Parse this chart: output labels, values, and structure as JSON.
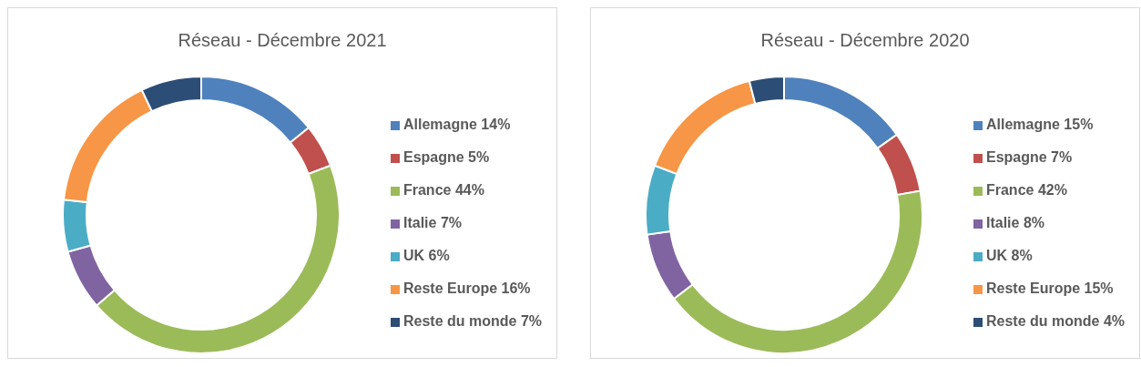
{
  "chart_data": [
    {
      "type": "donut",
      "title": "Réseau - Décembre 2021",
      "legend": "right",
      "categories": [
        "Allemagne 14%",
        "Espagne 5%",
        "France 44%",
        "Italie 7%",
        "UK 6%",
        "Reste Europe 16%",
        "Reste du monde 7%"
      ],
      "values": [
        14,
        5,
        44,
        7,
        6,
        16,
        7
      ],
      "colors": [
        "#4f81bd",
        "#c0504d",
        "#9bbb59",
        "#8064a2",
        "#4bacc6",
        "#f79646",
        "#2c4d75"
      ]
    },
    {
      "type": "donut",
      "title": "Réseau - Décembre 2020",
      "legend": "right",
      "categories": [
        "Allemagne 15%",
        "Espagne 7%",
        "France 42%",
        "Italie 8%",
        "UK 8%",
        "Reste Europe 15%",
        "Reste du monde 4%"
      ],
      "values": [
        15,
        7,
        42,
        8,
        8,
        15,
        4
      ],
      "colors": [
        "#4f81bd",
        "#c0504d",
        "#9bbb59",
        "#8064a2",
        "#4bacc6",
        "#f79646",
        "#2c4d75"
      ]
    }
  ]
}
